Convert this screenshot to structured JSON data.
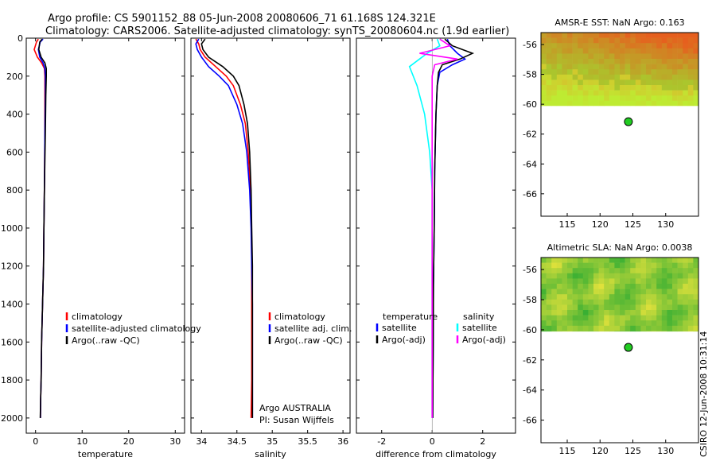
{
  "header": {
    "title_line1": "Argo profile: CS 5901152_88 05-Jun-2008 20080606_71 61.168S 124.321E",
    "title_line2": "Climatology: CARS2006. Satellite-adjusted climatology: synTS_20080604.nc (1.9d earlier)"
  },
  "footer": {
    "stamp": "CSIRO 12-Jun-2008 10:31:14"
  },
  "colors": {
    "climatology": "#ff0000",
    "satellite": "#0000ff",
    "argo": "#000000",
    "sal_satellite": "#00ffff",
    "sal_argo": "#ff00ff",
    "float_marker": "#22cc22"
  },
  "chart_data": [
    {
      "type": "line",
      "id": "temperature",
      "xlabel": "temperature",
      "ylabel": "",
      "xlim": [
        -2,
        32
      ],
      "ylim": [
        2080,
        0
      ],
      "xticks": [
        0,
        10,
        20,
        30
      ],
      "yticks": [
        0,
        200,
        400,
        600,
        800,
        1000,
        1200,
        1400,
        1600,
        1800,
        2000
      ],
      "legend": [
        "climatology",
        "satellite-adjusted climatology",
        "Argo(..raw -QC)"
      ],
      "series": [
        {
          "name": "climatology",
          "color": "#ff0000",
          "x": [
            0.6,
            0.2,
            -0.3,
            0.4,
            1.3,
            1.9,
            2.0,
            2.0,
            2.0,
            1.9,
            1.8,
            1.7,
            1.5,
            1.3,
            1.2,
            1.1,
            1.05
          ],
          "y": [
            5,
            20,
            60,
            100,
            130,
            160,
            200,
            300,
            500,
            800,
            1000,
            1200,
            1400,
            1600,
            1800,
            1900,
            2000
          ]
        },
        {
          "name": "satellite",
          "color": "#0000ff",
          "x": [
            1.6,
            1.0,
            0.6,
            0.9,
            1.6,
            2.0,
            2.1,
            2.1,
            2.0,
            1.9,
            1.8,
            1.7,
            1.5,
            1.3,
            1.2,
            1.1,
            1.05
          ],
          "y": [
            5,
            20,
            60,
            100,
            130,
            160,
            200,
            300,
            500,
            800,
            1000,
            1200,
            1400,
            1600,
            1800,
            1900,
            2000
          ]
        },
        {
          "name": "Argo",
          "color": "#000000",
          "x": [
            1.4,
            0.9,
            0.7,
            1.2,
            2.0,
            2.3,
            2.3,
            2.2,
            2.1,
            1.9,
            1.8,
            1.7,
            1.5,
            1.3,
            1.2,
            1.1,
            1.0
          ],
          "y": [
            5,
            20,
            60,
            100,
            130,
            160,
            200,
            300,
            500,
            800,
            1000,
            1200,
            1400,
            1600,
            1800,
            1900,
            2000
          ]
        }
      ]
    },
    {
      "type": "line",
      "id": "salinity",
      "xlabel": "salinity",
      "xlim": [
        33.85,
        36.1
      ],
      "ylim": [
        2080,
        0
      ],
      "xticks": [
        34,
        34.5,
        35,
        35.5,
        36
      ],
      "xtick_labels": [
        "34",
        "34.5",
        "35",
        "35.5",
        "36"
      ],
      "legend": [
        "climatology",
        "satellite adj. clim.",
        "Argo(..raw -QC)"
      ],
      "annotations": [
        "Argo AUSTRALIA",
        "PI: Susan Wijffels"
      ],
      "series": [
        {
          "name": "climatology",
          "color": "#ff0000",
          "x": [
            33.92,
            33.96,
            33.98,
            34.05,
            34.2,
            34.35,
            34.45,
            34.55,
            34.62,
            34.66,
            34.69,
            34.705,
            34.71,
            34.71,
            34.71,
            34.71,
            34.705,
            34.7
          ],
          "y": [
            5,
            30,
            60,
            100,
            150,
            200,
            250,
            350,
            450,
            600,
            800,
            1000,
            1200,
            1400,
            1600,
            1800,
            1900,
            2000
          ]
        },
        {
          "name": "satellite",
          "color": "#0000ff",
          "x": [
            33.96,
            33.92,
            33.94,
            34.0,
            34.1,
            34.25,
            34.38,
            34.5,
            34.58,
            34.64,
            34.68,
            34.7,
            34.71,
            34.72,
            34.72,
            34.72,
            34.72,
            34.72
          ],
          "y": [
            5,
            30,
            60,
            100,
            150,
            200,
            250,
            350,
            450,
            600,
            800,
            1000,
            1200,
            1400,
            1600,
            1800,
            1900,
            2000
          ]
        },
        {
          "name": "Argo",
          "color": "#000000",
          "x": [
            34.05,
            34.0,
            34.02,
            34.1,
            34.3,
            34.45,
            34.53,
            34.6,
            34.65,
            34.68,
            34.7,
            34.71,
            34.72,
            34.72,
            34.72,
            34.72,
            34.72,
            34.72
          ],
          "y": [
            5,
            30,
            60,
            100,
            150,
            200,
            250,
            350,
            450,
            600,
            800,
            1000,
            1200,
            1400,
            1600,
            1800,
            1900,
            2000
          ]
        }
      ]
    },
    {
      "type": "line",
      "id": "difference",
      "xlabel": "difference from climatology",
      "xlim": [
        -3,
        3.3
      ],
      "ylim": [
        2080,
        0
      ],
      "xticks": [
        -2,
        0,
        2
      ],
      "legend_headers": [
        "temperature",
        "salinity"
      ],
      "legend": [
        "satellite",
        "Argo(-adj)",
        "satellite",
        "Argo(-adj)"
      ],
      "series": [
        {
          "name": "temperature satellite",
          "color": "#0000ff",
          "x": [
            0.6,
            0.7,
            1.0,
            1.3,
            0.8,
            0.3,
            0.2,
            0.15,
            0.1,
            0.08,
            0.05,
            0.04,
            0.03,
            0.02
          ],
          "y": [
            5,
            40,
            80,
            110,
            140,
            180,
            250,
            400,
            700,
            1000,
            1300,
            1600,
            1800,
            2000
          ]
        },
        {
          "name": "temperature Argo",
          "color": "#000000",
          "x": [
            0.5,
            0.8,
            1.6,
            1.1,
            0.4,
            0.25,
            0.2,
            0.15,
            0.1,
            0.08,
            0.05,
            0.04,
            0.03,
            0.02
          ],
          "y": [
            5,
            40,
            80,
            110,
            140,
            180,
            250,
            400,
            700,
            1000,
            1300,
            1600,
            1800,
            2000
          ]
        },
        {
          "name": "salinity satellite",
          "color": "#00ffff",
          "x": [
            0.2,
            0.3,
            -0.2,
            -0.9,
            -0.6,
            -0.3,
            -0.1,
            0.0,
            0.0,
            0.0,
            0.0,
            0.0,
            0.0,
            0.0
          ],
          "y": [
            5,
            40,
            80,
            150,
            250,
            400,
            600,
            800,
            1000,
            1200,
            1400,
            1600,
            1800,
            2000
          ]
        },
        {
          "name": "salinity Argo",
          "color": "#ff00ff",
          "x": [
            0.3,
            0.7,
            -0.5,
            1.0,
            0.1,
            0.0,
            0.0,
            0.0,
            0.0,
            0.0,
            0.0,
            0.0,
            0.0,
            0.0
          ],
          "y": [
            5,
            40,
            80,
            110,
            140,
            200,
            400,
            700,
            1000,
            1300,
            1600,
            1800,
            1900,
            2000
          ]
        }
      ]
    },
    {
      "type": "heatmap",
      "id": "amsre_sst",
      "title": "AMSR-E SST: NaN Argo: 0.163",
      "xlim": [
        111,
        135
      ],
      "ylim": [
        -67.5,
        -55.2
      ],
      "xticks": [
        115,
        120,
        125,
        130
      ],
      "yticks": [
        -56,
        -58,
        -60,
        -62,
        -64,
        -66
      ],
      "data_lat_min": -60.1,
      "float_lon": 124.321,
      "float_lat": -61.168,
      "palette": "yellow-orange"
    },
    {
      "type": "heatmap",
      "id": "altimetric_sla",
      "title": "Altimetric SLA: NaN Argo: 0.0038",
      "xlim": [
        111,
        135
      ],
      "ylim": [
        -67.5,
        -55.2
      ],
      "xticks": [
        115,
        120,
        125,
        130
      ],
      "yticks": [
        -56,
        -58,
        -60,
        -62,
        -64,
        -66
      ],
      "data_lat_min": -60.1,
      "float_lon": 124.321,
      "float_lat": -61.168,
      "palette": "green-yellow"
    }
  ]
}
